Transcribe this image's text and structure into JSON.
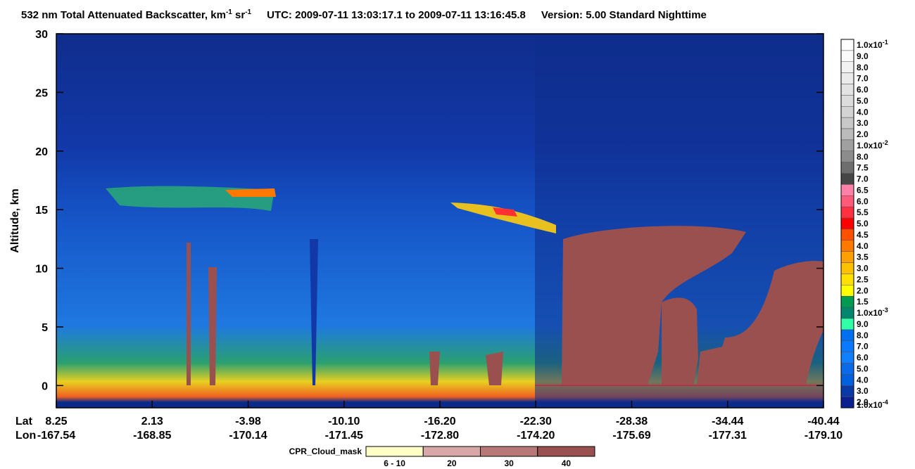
{
  "chart_data": {
    "type": "heatmap",
    "title": {
      "main": "532 nm Total Attenuated Backscatter, km",
      "sup1": "-1",
      "mid": " sr",
      "sup2": "-1",
      "utc": "UTC:  2009-07-11 13:03:17.1  to  2009-07-11 13:16:45.8",
      "version": "Version: 5.00  Standard  Nighttime"
    },
    "y_label": "Altitude, km",
    "ylim": [
      -1.9,
      30
    ],
    "yticks": [
      0,
      5,
      10,
      15,
      20,
      25,
      30
    ],
    "x_row_labels": [
      "Lat",
      "Lon"
    ],
    "lat": [
      "8.25",
      "2.13",
      "-3.98",
      "-10.10",
      "-16.20",
      "-22.30",
      "-28.38",
      "-34.44",
      "-40.44"
    ],
    "lon": [
      "-167.54",
      "-168.85",
      "-170.14",
      "-171.45",
      "-172.80",
      "-174.20",
      "-175.69",
      "-177.31",
      "-179.10"
    ],
    "colorbar": {
      "labels": [
        {
          "base": "1.0x10",
          "exp": "-1"
        },
        "9.0",
        "8.0",
        "7.0",
        "6.0",
        "5.0",
        "4.0",
        "3.0",
        "2.0",
        {
          "base": "1.0x10",
          "exp": "-2"
        },
        "8.0",
        "7.5",
        "7.0",
        "6.5",
        "6.0",
        "5.5",
        "5.0",
        "4.5",
        "4.0",
        "3.5",
        "3.0",
        "2.5",
        "2.0",
        "1.5",
        {
          "base": "1.0x10",
          "exp": "-3"
        },
        "9.0",
        "8.0",
        "7.0",
        "6.0",
        "5.0",
        "4.0",
        "3.0",
        "2.0",
        {
          "base": "1.0x10",
          "exp": "-4"
        }
      ],
      "colors": [
        "#ffffff",
        "#fafafa",
        "#f2f2f2",
        "#ebebeb",
        "#e3e3e3",
        "#dcdcdc",
        "#d3d3d3",
        "#c8c8c8",
        "#bbbbbb",
        "#a0a0a0",
        "#8c8c8c",
        "#6e6e6e",
        "#464646",
        "#ff80a8",
        "#ff5a7a",
        "#ff3040",
        "#ff0000",
        "#ff5000",
        "#ff7800",
        "#ffa000",
        "#ffc000",
        "#ffe000",
        "#ffff00",
        "#009a50",
        "#00876e",
        "#30ffa8",
        "#0070f0",
        "#0a78ff",
        "#1080ff",
        "#0a6ae8",
        "#0060e0",
        "#0a3aa8",
        "#0a2090"
      ]
    },
    "cpr_legend": {
      "title": "CPR_Cloud_mask",
      "labels": [
        "6 - 10",
        "20",
        "30",
        "40"
      ],
      "colors": [
        "#ffffc8",
        "#d8a8a8",
        "#b87878",
        "#985050"
      ]
    }
  }
}
